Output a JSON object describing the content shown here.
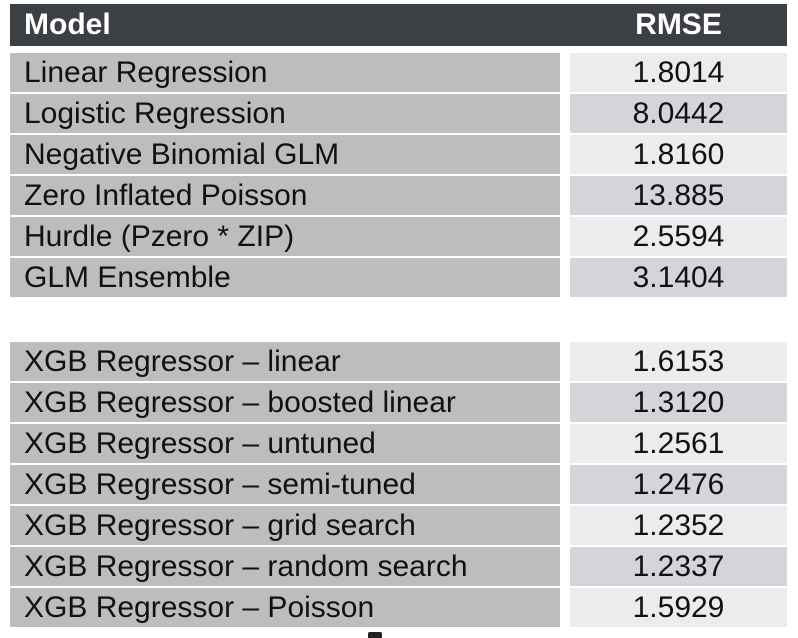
{
  "table": {
    "headers": {
      "model": "Model",
      "rmse": "RMSE"
    },
    "group1": [
      {
        "model": "Linear Regression",
        "rmse": "1.8014"
      },
      {
        "model": "Logistic Regression",
        "rmse": "8.0442"
      },
      {
        "model": "Negative Binomial GLM",
        "rmse": "1.8160"
      },
      {
        "model": "Zero Inflated Poisson",
        "rmse": "13.885"
      },
      {
        "model": "Hurdle  (Pzero * ZIP)",
        "rmse": "2.5594"
      },
      {
        "model": "GLM Ensemble",
        "rmse": "3.1404"
      }
    ],
    "group2": [
      {
        "model": "XGB Regressor – linear",
        "rmse": "1.6153"
      },
      {
        "model": "XGB Regressor – boosted linear",
        "rmse": "1.3120"
      },
      {
        "model": "XGB Regressor – untuned",
        "rmse": "1.2561"
      },
      {
        "model": "XGB Regressor – semi-tuned",
        "rmse": "1.2476"
      },
      {
        "model": "XGB Regressor – grid search",
        "rmse": "1.2352"
      },
      {
        "model": "XGB Regressor – random search",
        "rmse": "1.2337"
      },
      {
        "model": "XGB Regressor – Poisson",
        "rmse": "1.5929"
      }
    ]
  }
}
